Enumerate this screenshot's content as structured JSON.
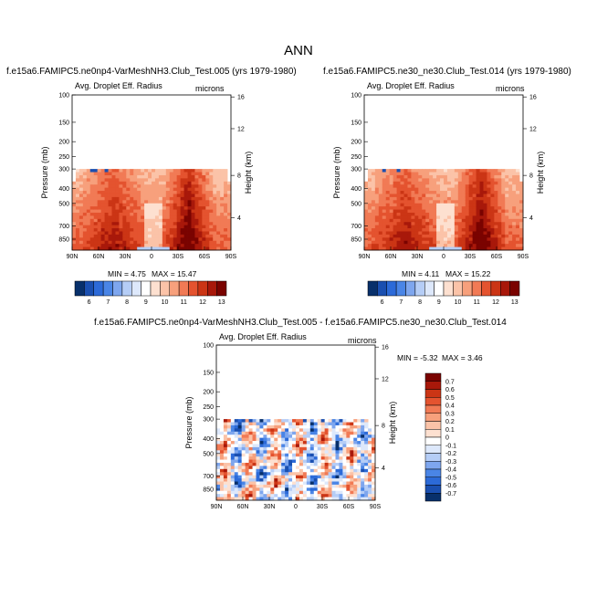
{
  "main_title": "ANN",
  "colors": {
    "diverging": [
      "#08306b",
      "#1a4fb0",
      "#2c6ad8",
      "#4a85e6",
      "#7ea6ee",
      "#b5cdf6",
      "#dde8fb",
      "#ffffff",
      "#fde0d0",
      "#fbc3a8",
      "#f7a07c",
      "#f17a55",
      "#e4532f",
      "#cb3515",
      "#a8180a",
      "#7a0300"
    ]
  },
  "chart_data": [
    {
      "type": "heatmap",
      "title": "f.e15a6.FAMIPC5.ne0np4-VarMeshNH3.Club_Test.005 (yrs 1979-1980)",
      "variable": "Avg. Droplet Eff. Radius",
      "units": "microns",
      "xlabel": "",
      "ylabel": "Pressure (mb)",
      "ylabel_right": "Height (km)",
      "x_ticks": [
        "90N",
        "60N",
        "30N",
        "0",
        "30S",
        "60S",
        "90S"
      ],
      "y_ticks": [
        "100",
        "150",
        "200",
        "250",
        "300",
        "400",
        "500",
        "700",
        "850"
      ],
      "y_right_ticks": [
        "16",
        "12",
        "8",
        "4"
      ],
      "min_label": "MIN =  4.75",
      "max_label": "MAX =  15.47",
      "colorbar_labels": [
        "6",
        "7",
        "8",
        "9",
        "10",
        "11",
        "12",
        "13"
      ],
      "ylim": [
        1000,
        100
      ]
    },
    {
      "type": "heatmap",
      "title": "f.e15a6.FAMIPC5.ne30_ne30.Club_Test.014 (yrs 1979-1980)",
      "variable": "Avg. Droplet Eff. Radius",
      "units": "microns",
      "xlabel": "",
      "ylabel": "Pressure (mb)",
      "ylabel_right": "Height (km)",
      "x_ticks": [
        "90N",
        "60N",
        "30N",
        "0",
        "30S",
        "60S",
        "90S"
      ],
      "y_ticks": [
        "100",
        "150",
        "200",
        "250",
        "300",
        "400",
        "500",
        "700",
        "850"
      ],
      "y_right_ticks": [
        "16",
        "12",
        "8",
        "4"
      ],
      "min_label": "MIN =  4.11",
      "max_label": "MAX =  15.22",
      "colorbar_labels": [
        "6",
        "7",
        "8",
        "9",
        "10",
        "11",
        "12",
        "13"
      ],
      "ylim": [
        1000,
        100
      ]
    },
    {
      "type": "heatmap",
      "title": "f.e15a6.FAMIPC5.ne0np4-VarMeshNH3.Club_Test.005 - f.e15a6.FAMIPC5.ne30_ne30.Club_Test.014",
      "variable": "Avg. Droplet Eff. Radius",
      "units": "microns",
      "xlabel": "",
      "ylabel": "Pressure (mb)",
      "ylabel_right": "Height (km)",
      "x_ticks": [
        "90N",
        "60N",
        "30N",
        "0",
        "30S",
        "60S",
        "90S"
      ],
      "y_ticks": [
        "100",
        "150",
        "200",
        "250",
        "300",
        "400",
        "500",
        "700",
        "850"
      ],
      "y_right_ticks": [
        "16",
        "12",
        "8",
        "4"
      ],
      "min_label": "MIN =  -5.32",
      "max_label": "MAX =  3.46",
      "colorbar_labels": [
        "0.7",
        "0.6",
        "0.5",
        "0.4",
        "0.3",
        "0.2",
        "0.1",
        "0",
        "-0.1",
        "-0.2",
        "-0.3",
        "-0.4",
        "-0.5",
        "-0.6",
        "-0.7"
      ],
      "ylim": [
        1000,
        100
      ]
    }
  ]
}
